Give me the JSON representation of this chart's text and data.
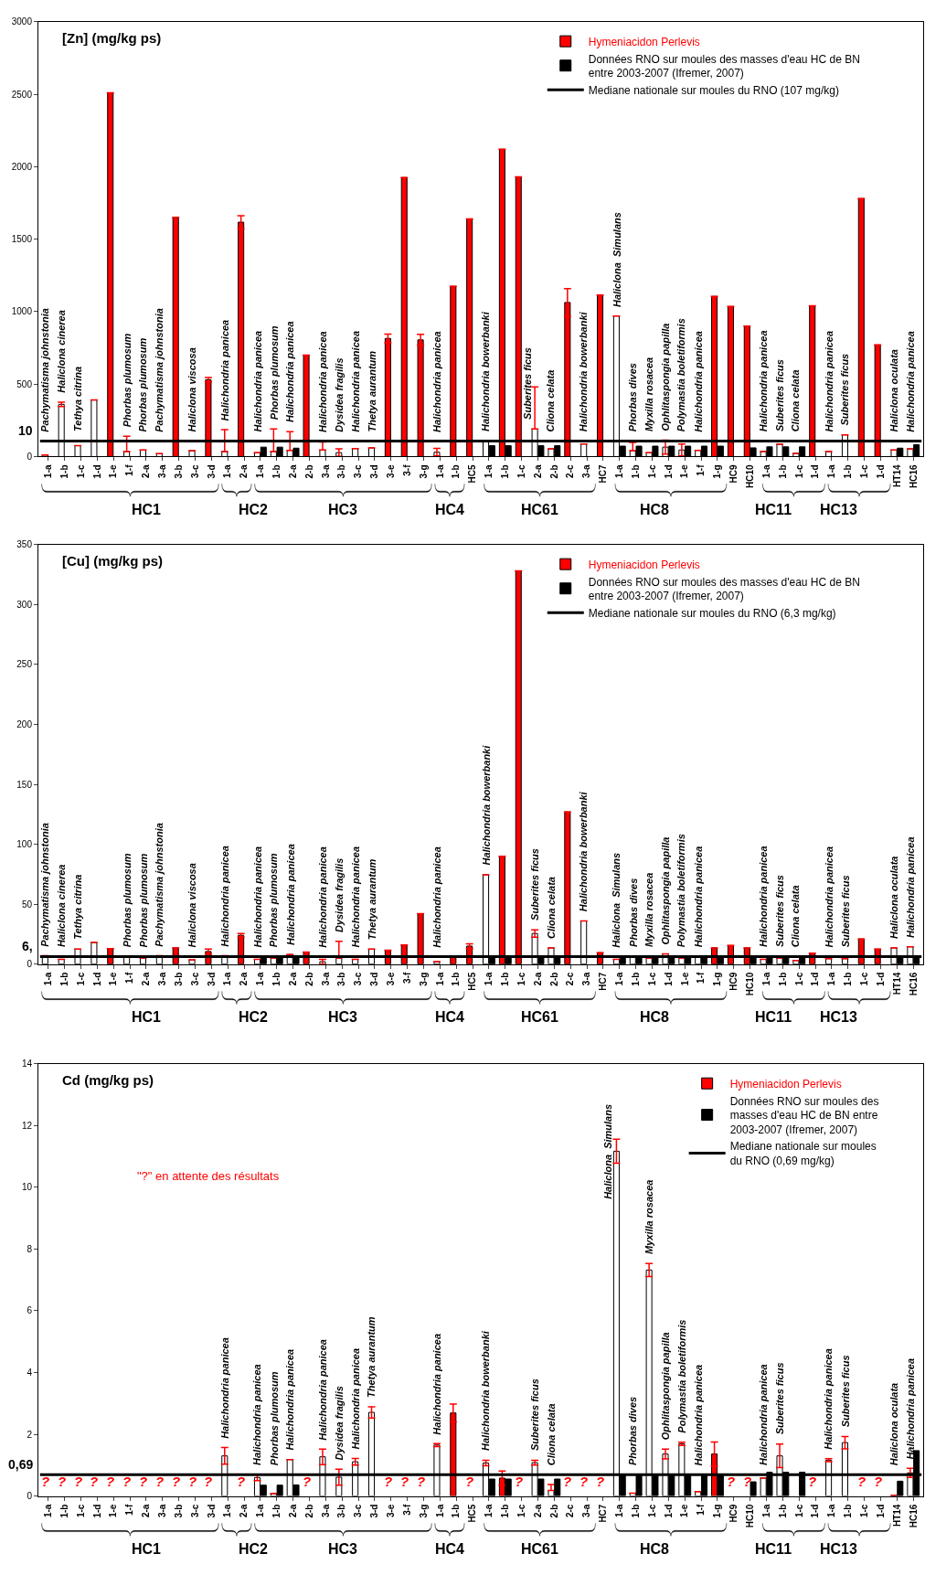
{
  "chart_data": [
    {
      "type": "bar",
      "title": "[Zn] (mg/kg ps)",
      "legend": "top right",
      "ylim": [
        0,
        3000
      ],
      "yticks": [
        0,
        500,
        1000,
        1500,
        2000,
        2500,
        3000
      ],
      "categories": [
        "1-a",
        "1-b",
        "1-c",
        "1-d",
        "1-e",
        "1-f",
        "2-a",
        "3-a",
        "3-b",
        "3-c",
        "3-d",
        "1-a",
        "2-a",
        "1-a",
        "1-b",
        "2-a",
        "2-b",
        "3-a",
        "3-b",
        "3-c",
        "3-d",
        "3-e",
        "3-f",
        "3-g",
        "1-a",
        "1-b",
        "HC5",
        "1-a",
        "1-b",
        "1-c",
        "2-a",
        "2-b",
        "2-c",
        "3-a",
        "HC7",
        "1-a",
        "1-b",
        "1-c",
        "1-d",
        "1-e",
        "1-f",
        "1-g",
        "HC9",
        "HC10",
        "1-a",
        "1-b",
        "1-c",
        "1-d",
        "1-a",
        "1-b",
        "1-c",
        "1-d",
        "HT14",
        "HC16"
      ],
      "series": [
        {
          "name": "Hymeniacidon Perlevis",
          "color": "#ff0000",
          "values": [
            null,
            null,
            null,
            null,
            2510,
            null,
            null,
            null,
            1650,
            null,
            530,
            null,
            1617,
            null,
            null,
            null,
            700,
            null,
            null,
            null,
            null,
            815,
            1925,
            805,
            null,
            1175,
            1640,
            null,
            2120,
            1930,
            null,
            null,
            1063,
            null,
            1115,
            null,
            null,
            null,
            null,
            null,
            null,
            1105,
            1035,
            900,
            null,
            null,
            null,
            1040,
            null,
            null,
            1780,
            770,
            null,
            null
          ],
          "errors": [
            null,
            null,
            null,
            null,
            null,
            null,
            null,
            null,
            null,
            null,
            15,
            null,
            45,
            null,
            null,
            null,
            null,
            null,
            null,
            null,
            null,
            30,
            null,
            38,
            null,
            null,
            null,
            null,
            null,
            null,
            null,
            null,
            96,
            null,
            null,
            null,
            null,
            null,
            null,
            null,
            null,
            null,
            null,
            null,
            null,
            null,
            null,
            null,
            null,
            null,
            null,
            null,
            null,
            null
          ]
        },
        {
          "color": "#ffffff",
          "values": [
            10,
            360,
            75,
            390,
            null,
            35,
            45,
            20,
            null,
            40,
            null,
            35,
            null,
            27,
            35,
            43,
            null,
            45,
            27,
            55,
            60,
            null,
            null,
            null,
            30,
            null,
            null,
            105,
            null,
            null,
            190,
            53,
            null,
            87,
            null,
            970,
            40,
            27,
            65,
            45,
            43,
            null,
            null,
            null,
            35,
            85,
            22,
            null,
            35,
            150,
            null,
            null,
            45,
            53
          ],
          "errors": [
            null,
            15,
            null,
            null,
            null,
            [
              35,
              140
            ],
            null,
            null,
            null,
            null,
            null,
            [
              35,
              185
            ],
            null,
            null,
            [
              35,
              190
            ],
            [
              43,
              171
            ],
            null,
            [
              45,
              100
            ],
            26,
            null,
            null,
            null,
            null,
            null,
            26,
            null,
            null,
            null,
            null,
            null,
            [
              190,
              480
            ],
            null,
            null,
            null,
            null,
            null,
            [
              40,
              98
            ],
            null,
            48,
            41,
            null,
            null,
            null,
            null,
            null,
            null,
            null,
            null,
            null,
            null,
            null,
            null,
            null,
            null
          ],
          "value_labels": [
            "Pachymatisma johnstonia",
            "Haliclona cinerea",
            "Tethya citrina",
            null,
            null,
            "Phorbas plumosum",
            "Phorbas plumosum",
            "Pachymatisma johnstonia",
            null,
            "Haliclona viscosa",
            null,
            "Halichondria panicea",
            null,
            "Halichondria panicea",
            "Phorbas plumosum",
            "Halichondria panicea",
            null,
            "Halichondria panicea",
            "Dysidea fragilis",
            "Halichondria panicea",
            "Thetya aurantum",
            null,
            null,
            null,
            "Halichondria panicea",
            null,
            null,
            "Halichondria bowerbanki",
            null,
            null,
            "Suberites ficus",
            "Cliona celata",
            null,
            "Halichondria bowerbanki",
            null,
            "Haliclona  Simulans",
            "Phorbas dives",
            "Myxilla rosacea",
            "Ophlitaspongia papilla",
            "Polymastia boletiformis",
            "Halichondria panicea",
            null,
            null,
            null,
            "Halichondria panicea",
            "Suberites ficus",
            "Cliona celata",
            null,
            "Halichondria panicea",
            "Suberites ficus",
            null,
            null,
            "Haliclona oculata",
            "Halichondria panicea"
          ]
        },
        {
          "name": "Données RNO sur moules des masses d'eau HC de BN entre 2003-2007 (Ifremer, 2007)",
          "color": "#000000",
          "values": [
            null,
            null,
            null,
            null,
            null,
            null,
            null,
            null,
            null,
            null,
            null,
            null,
            null,
            65,
            65,
            58,
            null,
            null,
            null,
            null,
            null,
            null,
            null,
            null,
            null,
            null,
            null,
            75,
            75,
            null,
            75,
            75,
            null,
            null,
            null,
            72,
            72,
            72,
            72,
            72,
            72,
            72,
            null,
            60,
            67,
            67,
            67,
            null,
            null,
            null,
            null,
            null,
            58,
            82
          ]
        }
      ],
      "ref_lines": [
        {
          "axis": "y",
          "value": 107,
          "label": "Mediane nationale sur moules du RNO (107 mg/kg)",
          "color": "#000000"
        }
      ],
      "annotations": [
        "HC1",
        "HC2",
        "HC3",
        "HC4",
        "HC61",
        "HC8",
        "HC11",
        "HC13",
        "10"
      ]
    },
    {
      "type": "bar",
      "title": "[Cu] (mg/kg ps)",
      "legend": "top right",
      "ylim": [
        0,
        350
      ],
      "yticks": [
        0,
        50,
        100,
        150,
        200,
        250,
        300,
        350
      ],
      "categories": [
        "1-a",
        "1-b",
        "1-c",
        "1-d",
        "1-e",
        "1-f",
        "2-a",
        "3-a",
        "3-b",
        "3-c",
        "3-d",
        "1-a",
        "2-a",
        "1-a",
        "1-b",
        "2-a",
        "2-b",
        "3-a",
        "3-b",
        "3-c",
        "3-d",
        "3-e",
        "3-f",
        "3-g",
        "1-a",
        "1-b",
        "HC5",
        "1-a",
        "1-b",
        "1-c",
        "2-a",
        "2-b",
        "2-c",
        "3-a",
        "HC7",
        "1-a",
        "1-b",
        "1-c",
        "1-d",
        "1-e",
        "1-f",
        "1-g",
        "HC9",
        "HC10",
        "1-a",
        "1-b",
        "1-c",
        "1-d",
        "1-a",
        "1-b",
        "1-c",
        "1-d",
        "HT14",
        "HC16"
      ],
      "series": [
        {
          "name": "Hymeniacidon Perlevis",
          "color": "#ff0000",
          "values": [
            null,
            null,
            null,
            null,
            13,
            null,
            null,
            null,
            13.5,
            null,
            10.5,
            null,
            24,
            null,
            null,
            null,
            10,
            null,
            null,
            null,
            null,
            11.5,
            16,
            42,
            null,
            6,
            15,
            null,
            90,
            328,
            null,
            null,
            127,
            null,
            9.5,
            null,
            null,
            null,
            null,
            null,
            null,
            13.5,
            15.5,
            13.5,
            null,
            null,
            null,
            9,
            null,
            null,
            21,
            12.5,
            null,
            null
          ],
          "errors": [
            null,
            null,
            null,
            null,
            null,
            null,
            null,
            null,
            null,
            null,
            2,
            null,
            1.5,
            null,
            null,
            null,
            null,
            null,
            null,
            null,
            null,
            null,
            null,
            null,
            null,
            null,
            2,
            null,
            null,
            null,
            null,
            null,
            null,
            null,
            null,
            null,
            null,
            null,
            null,
            null,
            null,
            null,
            null,
            null,
            null,
            null,
            null,
            null,
            null,
            null,
            null,
            null,
            null,
            null
          ]
        },
        {
          "color": "#ffffff",
          "values": [
            7,
            4,
            12.5,
            18,
            null,
            6.5,
            5,
            7,
            null,
            3.5,
            null,
            7,
            null,
            4,
            5,
            8,
            null,
            2,
            5,
            4,
            12.5,
            null,
            null,
            null,
            2,
            null,
            null,
            74.5,
            null,
            null,
            25.5,
            13.5,
            null,
            36,
            null,
            4,
            6.5,
            5,
            8.5,
            5,
            6.5,
            null,
            null,
            null,
            4,
            5,
            3,
            null,
            4.5,
            4.5,
            null,
            null,
            13.5,
            14.5
          ],
          "errors": [
            null,
            null,
            null,
            null,
            null,
            null,
            null,
            null,
            null,
            null,
            null,
            null,
            null,
            null,
            null,
            null,
            null,
            2,
            [
              5,
              19
            ],
            null,
            null,
            null,
            null,
            null,
            null,
            null,
            null,
            null,
            null,
            null,
            3,
            null,
            null,
            null,
            null,
            null,
            null,
            null,
            null,
            null,
            null,
            null,
            null,
            null,
            null,
            null,
            null,
            null,
            null,
            null,
            null,
            null,
            null,
            null
          ],
          "value_labels": [
            "Pachymatisma johnstonia",
            "Haliclona cinerea",
            "Tethya citrina",
            null,
            null,
            "Phorbas plumosum",
            "Phorbas plumosum",
            "Pachymatisma johnstonia",
            null,
            "Haliclona viscosa",
            null,
            "Halichondria panicea",
            null,
            "Halichondria panicea",
            "Phorbas plumosum",
            "Halichondria panicea",
            null,
            "Halichondria panicea",
            "Dysidea fragilis",
            "Halichondria panicea",
            "Thetya aurantum",
            null,
            null,
            null,
            "Halichondria panicea",
            null,
            null,
            "Halichondria bowerbanki",
            null,
            null,
            "Suberites ficus",
            "Cliona celata",
            null,
            "Halichondria bowerbanki",
            null,
            "Haliclona  Simulans",
            "Phorbas dives",
            "Myxilla rosacea",
            "Ophlitaspongia papilla",
            "Polymastia boletiformis",
            "Halichondria panicea",
            null,
            null,
            null,
            "Halichondria panicea",
            "Suberites ficus",
            "Cliona celata",
            null,
            "Halichondria panicea",
            "Suberites ficus",
            null,
            null,
            "Haliclona oculata",
            "Halichondria panicea"
          ]
        },
        {
          "name": "Données RNO sur moules des masses d'eau HC de BN entre 2003-2007 (Ifremer, 2007)",
          "color": "#000000",
          "values": [
            null,
            null,
            null,
            null,
            null,
            null,
            null,
            null,
            null,
            null,
            null,
            null,
            null,
            6.5,
            6.5,
            6.5,
            null,
            null,
            null,
            null,
            null,
            null,
            null,
            null,
            null,
            null,
            null,
            7,
            7,
            null,
            7,
            7,
            null,
            null,
            null,
            6,
            6,
            6,
            6,
            6,
            6,
            6,
            null,
            6,
            6,
            6,
            6,
            null,
            null,
            null,
            null,
            null,
            6.5,
            7
          ]
        }
      ],
      "ref_lines": [
        {
          "axis": "y",
          "value": 6.3,
          "label": "Mediane nationale sur moules du RNO (6,3 mg/kg)",
          "color": "#000000"
        }
      ],
      "annotations": [
        "HC1",
        "HC2",
        "HC3",
        "HC4",
        "HC61",
        "HC8",
        "HC11",
        "HC13",
        "6,"
      ]
    },
    {
      "type": "bar",
      "title": "Cd (mg/kg ps)",
      "legend": "top right",
      "ylim": [
        0,
        14
      ],
      "yticks": [
        0,
        2,
        4,
        6,
        8,
        10,
        12,
        14
      ],
      "categories": [
        "1-a",
        "1-b",
        "1-c",
        "1-d",
        "1-e",
        "1-f",
        "2-a",
        "3-a",
        "3-b",
        "3-c",
        "3-d",
        "1-a",
        "2-a",
        "1-a",
        "1-b",
        "2-a",
        "2-b",
        "3-a",
        "3-b",
        "3-c",
        "3-d",
        "3-e",
        "3-f",
        "3-g",
        "1-a",
        "1-b",
        "HC5",
        "1-a",
        "1-b",
        "1-c",
        "2-a",
        "2-b",
        "2-c",
        "3-a",
        "HC7",
        "1-a",
        "1-b",
        "1-c",
        "1-d",
        "1-e",
        "1-f",
        "1-g",
        "HC9",
        "HC10",
        "1-a",
        "1-b",
        "1-c",
        "1-d",
        "1-a",
        "1-b",
        "1-c",
        "1-d",
        "HT14",
        "HC16"
      ],
      "series": [
        {
          "name": "Hymeniacidon Perlevis",
          "color": "#ff0000",
          "values": [
            null,
            null,
            null,
            null,
            null,
            null,
            null,
            null,
            null,
            null,
            null,
            null,
            null,
            null,
            null,
            null,
            null,
            null,
            null,
            null,
            null,
            null,
            null,
            null,
            null,
            2.69,
            null,
            null,
            0.58,
            null,
            null,
            null,
            null,
            null,
            null,
            null,
            null,
            null,
            null,
            null,
            null,
            1.36,
            null,
            null,
            null,
            null,
            null,
            null,
            null,
            null,
            null,
            null,
            null,
            null
          ],
          "errors": [
            null,
            null,
            null,
            null,
            null,
            null,
            null,
            null,
            null,
            null,
            null,
            null,
            null,
            null,
            null,
            null,
            null,
            null,
            null,
            null,
            null,
            null,
            null,
            null,
            null,
            0.29,
            null,
            null,
            0.23,
            null,
            null,
            null,
            null,
            null,
            null,
            null,
            null,
            null,
            null,
            null,
            null,
            0.39,
            null,
            null,
            null,
            null,
            null,
            null,
            null,
            null,
            null,
            null,
            null,
            null
          ],
          "value_labels": [
            "?",
            "?",
            "?",
            "?",
            "?",
            "?",
            "?",
            "?",
            "?",
            "?",
            "?",
            null,
            "?",
            null,
            null,
            null,
            "?",
            null,
            null,
            null,
            null,
            "?",
            "?",
            "?",
            null,
            null,
            "?",
            null,
            null,
            "?",
            null,
            null,
            "?",
            "?",
            "?",
            null,
            null,
            null,
            null,
            null,
            null,
            null,
            "?",
            "?",
            null,
            null,
            null,
            "?",
            null,
            null,
            "?",
            "?",
            null,
            null
          ]
        },
        {
          "color": "#ffffff",
          "values": [
            null,
            null,
            null,
            null,
            null,
            null,
            null,
            null,
            null,
            null,
            null,
            1.3,
            null,
            0.6,
            0.08,
            1.18,
            null,
            1.27,
            0.61,
            1.11,
            2.71,
            null,
            null,
            null,
            1.65,
            null,
            null,
            1.07,
            null,
            null,
            1.08,
            0.18,
            null,
            null,
            null,
            11.17,
            0.09,
            7.32,
            1.36,
            1.69,
            0.14,
            null,
            null,
            null,
            0.58,
            1.3,
            null,
            null,
            1.16,
            1.73,
            null,
            null,
            0.02,
            0.75
          ],
          "errors": [
            null,
            null,
            null,
            null,
            null,
            null,
            null,
            null,
            null,
            null,
            null,
            0.27,
            null,
            0.1,
            null,
            null,
            null,
            0.25,
            0.26,
            0.11,
            0.18,
            null,
            null,
            null,
            0.05,
            null,
            null,
            0.09,
            null,
            null,
            0.08,
            [
              0.18,
              0.37
            ],
            null,
            null,
            null,
            0.39,
            null,
            0.21,
            0.16,
            0.05,
            null,
            null,
            null,
            null,
            null,
            0.38,
            null,
            null,
            0.05,
            0.2,
            null,
            null,
            null,
            0.15
          ],
          "value_labels": [
            null,
            null,
            null,
            null,
            null,
            null,
            null,
            null,
            null,
            null,
            null,
            "Halichondria panicea",
            null,
            "Halichondria panicea",
            "Phorbas plumosum",
            "Halichondria panicea",
            null,
            "Halichondria panicea",
            "Dysidea fragilis",
            "Halichondria panicea",
            "Thetya aurantum",
            null,
            null,
            null,
            "Halichondria panicea",
            null,
            null,
            "Halichondria bowerbanki",
            null,
            null,
            "Suberites ficus",
            "Cliona celata",
            null,
            null,
            null,
            "Haliclona  Simulans",
            "Phorbas dives",
            "Myxilla rosacea",
            "Ophlitaspongia papilla",
            "Polymastia boletiformis",
            "Halichondria panicea",
            null,
            null,
            null,
            "Halichondria panicea",
            "Suberites ficus",
            null,
            null,
            "Halichondria panicea",
            "Suberites ficus",
            null,
            null,
            "Haliclona oculata",
            "Halichondria panicea"
          ]
        },
        {
          "name": "Données RNO sur moules des masses d'eau HC de BN entre 2003-2007 (Ifremer, 2007)",
          "color": "#000000",
          "values": [
            null,
            null,
            null,
            null,
            null,
            null,
            null,
            null,
            null,
            null,
            null,
            null,
            null,
            0.35,
            0.35,
            0.36,
            null,
            null,
            null,
            null,
            null,
            null,
            null,
            null,
            null,
            null,
            null,
            0.55,
            0.55,
            null,
            0.55,
            0.55,
            null,
            null,
            null,
            0.7,
            0.7,
            0.7,
            0.7,
            0.7,
            0.7,
            0.7,
            null,
            0.46,
            0.77,
            0.77,
            0.77,
            null,
            null,
            null,
            null,
            null,
            0.48,
            1.47
          ]
        }
      ],
      "ref_lines": [
        {
          "axis": "y",
          "value": 0.69,
          "label": "Mediane nationale sur moules du RNO (0,69 mg/kg)",
          "color": "#000000"
        }
      ],
      "annotations": [
        "HC1",
        "HC2",
        "HC3",
        "HC4",
        "HC61",
        "HC8",
        "HC11",
        "HC13",
        "\"?\" en attente des résultats",
        "0,69"
      ]
    }
  ]
}
